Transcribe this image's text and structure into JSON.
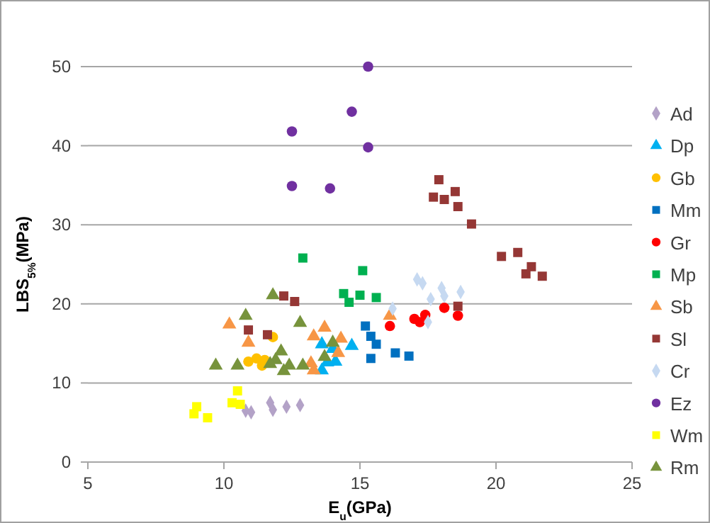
{
  "chart_data": {
    "type": "scatter",
    "xlabel": "E$_{u}$(GPa)",
    "ylabel": "LBS$_{5%}$(MPa)",
    "xlim": [
      5,
      25
    ],
    "xticks": [
      5,
      10,
      15,
      20,
      25
    ],
    "ylim": [
      0,
      50
    ],
    "yticks": [
      0,
      10,
      20,
      30,
      40,
      50
    ],
    "grid": "y",
    "legend": "right",
    "series": [
      {
        "name": "Ad",
        "color": "#b3a2c7",
        "marker": "diamond",
        "x": [
          10.8,
          11.0,
          11.7,
          11.8,
          12.3,
          12.8
        ],
        "values": [
          6.5,
          6.3,
          7.5,
          6.6,
          7.0,
          7.2
        ]
      },
      {
        "name": "Dp",
        "color": "#00b0f0",
        "marker": "triangle",
        "x": [
          13.6,
          14.0,
          14.7,
          13.8,
          14.1,
          13.6
        ],
        "values": [
          14.9,
          14.3,
          14.7,
          12.6,
          12.7,
          11.6
        ]
      },
      {
        "name": "Gb",
        "color": "#ffc000",
        "marker": "circle",
        "x": [
          10.9,
          11.2,
          11.4,
          11.8,
          11.5
        ],
        "values": [
          12.7,
          13.1,
          12.2,
          15.8,
          12.9
        ]
      },
      {
        "name": "Mm",
        "color": "#0070c0",
        "marker": "square",
        "x": [
          15.2,
          15.4,
          15.6,
          15.4,
          16.3,
          16.8
        ],
        "values": [
          17.2,
          15.9,
          14.9,
          13.1,
          13.8,
          13.4
        ]
      },
      {
        "name": "Gr",
        "color": "#ff0000",
        "marker": "circle",
        "x": [
          16.1,
          17.0,
          17.2,
          17.4,
          18.1,
          18.6
        ],
        "values": [
          17.2,
          18.1,
          17.7,
          18.6,
          19.5,
          18.5
        ]
      },
      {
        "name": "Mp",
        "color": "#00b050",
        "marker": "square",
        "x": [
          12.9,
          15.1,
          14.4,
          14.6,
          15.0,
          15.6
        ],
        "values": [
          25.8,
          24.2,
          21.3,
          20.2,
          21.1,
          20.8
        ]
      },
      {
        "name": "Sb",
        "color": "#f79646",
        "marker": "triangle",
        "x": [
          10.2,
          10.9,
          13.3,
          13.7,
          14.3,
          14.2,
          13.2,
          13.3,
          16.1
        ],
        "values": [
          17.4,
          15.1,
          15.9,
          17.0,
          15.6,
          13.8,
          12.5,
          11.6,
          18.5
        ]
      },
      {
        "name": "Sl",
        "color": "#953735",
        "marker": "square",
        "x": [
          17.9,
          17.7,
          18.1,
          18.5,
          18.6,
          19.1,
          20.2,
          20.8,
          21.1,
          21.3,
          21.7,
          18.6,
          12.2,
          12.6,
          10.9,
          11.6
        ],
        "values": [
          35.7,
          33.5,
          33.2,
          34.2,
          32.3,
          30.1,
          26.0,
          26.5,
          23.8,
          24.7,
          23.5,
          19.7,
          21.0,
          20.3,
          16.7,
          16.1
        ]
      },
      {
        "name": "Cr",
        "color": "#c6d9f1",
        "marker": "diamond",
        "x": [
          17.3,
          17.1,
          18.0,
          17.6,
          18.1,
          18.7,
          16.2,
          17.5
        ],
        "values": [
          22.6,
          23.1,
          22.0,
          20.6,
          21.0,
          21.5,
          19.4,
          17.7
        ]
      },
      {
        "name": "Ez",
        "color": "#7030a0",
        "marker": "circle",
        "x": [
          15.3,
          14.7,
          12.5,
          15.3,
          12.5,
          13.9
        ],
        "values": [
          50.0,
          44.3,
          41.8,
          39.8,
          34.9,
          34.6
        ]
      },
      {
        "name": "Wm",
        "color": "#ffff00",
        "marker": "square",
        "x": [
          10.5,
          10.3,
          10.6,
          9.0,
          8.9,
          9.4
        ],
        "values": [
          9.0,
          7.5,
          7.3,
          7.0,
          6.1,
          5.6
        ]
      },
      {
        "name": "Rm",
        "color": "#77933c",
        "marker": "triangle",
        "x": [
          9.7,
          10.5,
          10.8,
          11.8,
          12.1,
          11.9,
          11.7,
          12.2,
          12.4,
          12.9,
          12.8,
          14.0,
          13.7
        ],
        "values": [
          12.2,
          12.2,
          18.5,
          21.1,
          14.0,
          12.9,
          12.4,
          11.5,
          12.2,
          12.2,
          17.6,
          15.1,
          13.3
        ]
      }
    ]
  }
}
